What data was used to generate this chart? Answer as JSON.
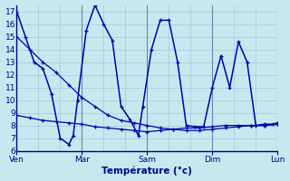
{
  "xlabel": "Température (°c)",
  "bg_color": "#c8e8f0",
  "grid_color": "#a0c8d8",
  "line_color": "#0000aa",
  "spine_color": "#000088",
  "tick_color": "#000088",
  "label_color": "#000088",
  "ylim": [
    6,
    17.5
  ],
  "yticks": [
    6,
    7,
    8,
    9,
    10,
    11,
    12,
    13,
    14,
    15,
    16,
    17
  ],
  "xlim": [
    0,
    120
  ],
  "x_tick_positions": [
    0,
    30,
    60,
    90,
    120
  ],
  "x_tick_labels": [
    "Ven",
    "Mar",
    "Sam",
    "Dim",
    "Lun"
  ],
  "vline_positions": [
    30,
    60,
    90,
    120
  ],
  "line1_x": [
    0,
    4,
    8,
    12,
    16,
    20,
    24,
    26,
    28,
    32,
    36,
    40,
    44,
    48,
    52,
    56,
    58,
    62,
    66,
    70,
    74,
    78,
    82,
    86,
    90,
    94,
    98,
    102,
    106,
    110,
    114,
    118,
    120
  ],
  "line1_y": [
    17,
    15,
    13,
    12.5,
    10.5,
    7.0,
    6.5,
    7.2,
    10.0,
    15.5,
    17.5,
    16.0,
    14.7,
    9.5,
    8.5,
    7.2,
    9.5,
    14.0,
    16.3,
    16.3,
    13.0,
    8.0,
    7.9,
    7.9,
    11.0,
    13.5,
    11.0,
    14.6,
    13.0,
    8.0,
    8.1,
    8.1,
    8.2
  ],
  "line2_x": [
    0,
    6,
    12,
    18,
    24,
    30,
    36,
    42,
    48,
    54,
    60,
    66,
    72,
    78,
    84,
    90,
    96,
    102,
    108,
    114,
    120
  ],
  "line2_y": [
    15.0,
    14.0,
    13.0,
    12.2,
    11.2,
    10.2,
    9.5,
    8.8,
    8.4,
    8.2,
    8.0,
    7.8,
    7.7,
    7.6,
    7.6,
    7.7,
    7.8,
    7.9,
    8.0,
    8.0,
    8.1
  ],
  "line3_x": [
    0,
    6,
    12,
    18,
    24,
    30,
    36,
    42,
    48,
    54,
    60,
    66,
    72,
    78,
    84,
    90,
    96,
    102,
    108,
    114,
    120
  ],
  "line3_y": [
    8.8,
    8.6,
    8.4,
    8.3,
    8.2,
    8.1,
    7.9,
    7.8,
    7.7,
    7.6,
    7.5,
    7.6,
    7.7,
    7.8,
    7.8,
    7.9,
    8.0,
    8.0,
    8.0,
    8.0,
    8.1
  ]
}
